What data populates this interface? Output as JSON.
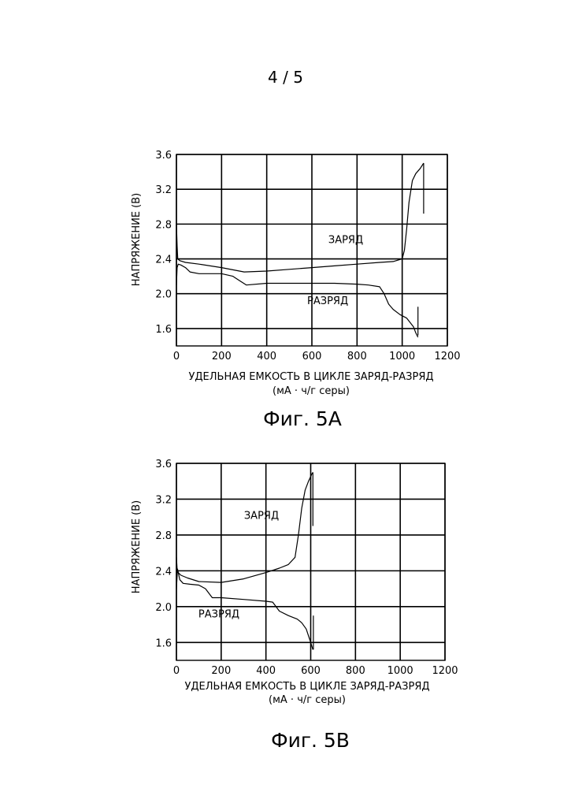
{
  "page_number": "4 / 5",
  "chart_data": [
    {
      "type": "line",
      "caption": "Фиг. 5А",
      "xlabel": "УДЕЛЬНАЯ ЕМКОСТЬ В ЦИКЛЕ ЗАРЯД-РАЗРЯД",
      "xlabel_units": "(мА · ч/г серы)",
      "ylabel": "НАПРЯЖЕНИЕ (В)",
      "xlim": [
        0,
        1200
      ],
      "ylim": [
        1.4,
        3.6
      ],
      "x_ticks": [
        0,
        200,
        400,
        600,
        800,
        1000,
        1200
      ],
      "y_ticks": [
        1.6,
        2.0,
        2.4,
        2.8,
        3.2,
        3.6
      ],
      "grid": true,
      "annotations": [
        {
          "text": "ЗАРЯД",
          "x": 750,
          "y": 2.58
        },
        {
          "text": "РАЗРЯД",
          "x": 670,
          "y": 1.88
        }
      ],
      "series": [
        {
          "name": "ЗАРЯД",
          "x": [
            0,
            3,
            6,
            15,
            40,
            100,
            200,
            300,
            400,
            500,
            600,
            700,
            800,
            900,
            960,
            1000,
            1010,
            1020,
            1030,
            1045,
            1060,
            1080,
            1095
          ],
          "y": [
            2.8,
            2.55,
            2.4,
            2.38,
            2.36,
            2.34,
            2.3,
            2.25,
            2.26,
            2.28,
            2.3,
            2.32,
            2.34,
            2.36,
            2.37,
            2.4,
            2.5,
            2.75,
            3.05,
            3.3,
            3.38,
            3.44,
            3.5
          ]
        },
        {
          "name": "РАЗРЯД",
          "x": [
            0,
            3,
            8,
            20,
            40,
            60,
            100,
            200,
            250,
            280,
            310,
            400,
            500,
            600,
            700,
            800,
            850,
            900,
            920,
            940,
            960,
            990,
            1020,
            1050,
            1060,
            1070
          ],
          "y": [
            2.1,
            2.3,
            2.34,
            2.33,
            2.3,
            2.25,
            2.23,
            2.23,
            2.2,
            2.15,
            2.1,
            2.12,
            2.12,
            2.12,
            2.12,
            2.11,
            2.1,
            2.08,
            2.0,
            1.88,
            1.82,
            1.76,
            1.72,
            1.62,
            1.55,
            1.5
          ]
        },
        {
          "name": "",
          "x": [
            1095,
            1095
          ],
          "y": [
            3.5,
            2.92
          ]
        },
        {
          "name": "",
          "x": [
            1070,
            1070
          ],
          "y": [
            1.52,
            1.85
          ]
        }
      ]
    },
    {
      "type": "line",
      "caption": "Фиг. 5В",
      "xlabel": "УДЕЛЬНАЯ ЕМКОСТЬ В ЦИКЛЕ ЗАРЯД-РАЗРЯД",
      "xlabel_units": "(мА · ч/г серы)",
      "ylabel": "НАПРЯЖЕНИЕ (В)",
      "xlim": [
        0,
        1200
      ],
      "ylim": [
        1.4,
        3.6
      ],
      "x_ticks": [
        0,
        200,
        400,
        600,
        800,
        1000,
        1200
      ],
      "y_ticks": [
        1.6,
        2.0,
        2.4,
        2.8,
        3.2,
        3.6
      ],
      "grid": true,
      "annotations": [
        {
          "text": "ЗАРЯД",
          "x": 380,
          "y": 2.98
        },
        {
          "text": "РАЗРЯД",
          "x": 190,
          "y": 1.88
        }
      ],
      "series": [
        {
          "name": "ЗАРЯД",
          "x": [
            0,
            3,
            8,
            20,
            50,
            100,
            200,
            300,
            400,
            460,
            500,
            530,
            545,
            560,
            575,
            590,
            605,
            610
          ],
          "y": [
            2.55,
            2.42,
            2.38,
            2.35,
            2.32,
            2.28,
            2.27,
            2.31,
            2.38,
            2.43,
            2.47,
            2.55,
            2.8,
            3.1,
            3.3,
            3.4,
            3.48,
            3.5
          ]
        },
        {
          "name": "РАЗРЯД",
          "x": [
            0,
            5,
            15,
            30,
            60,
            100,
            130,
            160,
            170,
            200,
            300,
            400,
            430,
            460,
            500,
            540,
            560,
            580,
            600,
            610
          ],
          "y": [
            2.2,
            2.42,
            2.3,
            2.26,
            2.25,
            2.24,
            2.2,
            2.1,
            2.1,
            2.1,
            2.08,
            2.06,
            2.05,
            1.95,
            1.9,
            1.86,
            1.82,
            1.75,
            1.6,
            1.52
          ]
        },
        {
          "name": "",
          "x": [
            610,
            610
          ],
          "y": [
            3.5,
            2.9
          ]
        },
        {
          "name": "",
          "x": [
            612,
            612
          ],
          "y": [
            1.52,
            1.9
          ]
        }
      ]
    }
  ]
}
